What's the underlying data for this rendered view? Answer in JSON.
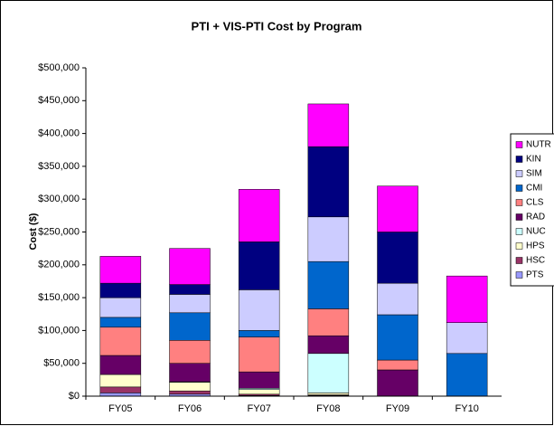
{
  "chart_data": {
    "type": "stacked_bar",
    "title": "PTI + VIS-PTI Cost by Program",
    "y_label": "Cost ($)",
    "categories": [
      "FY05",
      "FY06",
      "FY07",
      "FY08",
      "FY09",
      "FY10"
    ],
    "series": [
      {
        "name": "PTS",
        "color": "#9999FF",
        "values": [
          5000,
          3000,
          1000,
          1000,
          0,
          0
        ]
      },
      {
        "name": "HSC",
        "color": "#993366",
        "values": [
          9000,
          5000,
          2000,
          1000,
          0,
          0
        ]
      },
      {
        "name": "HPS",
        "color": "#FFFFCC",
        "values": [
          19000,
          13000,
          7000,
          3000,
          0,
          0
        ]
      },
      {
        "name": "NUC",
        "color": "#CCFFFF",
        "values": [
          0,
          1000,
          2000,
          60000,
          0,
          0
        ]
      },
      {
        "name": "RAD",
        "color": "#660066",
        "values": [
          29000,
          28000,
          25000,
          27000,
          40000,
          0
        ]
      },
      {
        "name": "CLS",
        "color": "#FF8080",
        "values": [
          43000,
          35000,
          53000,
          41000,
          15000,
          0
        ]
      },
      {
        "name": "CMI",
        "color": "#0066CC",
        "values": [
          15000,
          42000,
          10000,
          72000,
          69000,
          65000
        ]
      },
      {
        "name": "SIM",
        "color": "#CCCCFF",
        "values": [
          30000,
          28000,
          62000,
          68000,
          48000,
          47000
        ]
      },
      {
        "name": "KIN",
        "color": "#000080",
        "values": [
          22000,
          15000,
          73000,
          107000,
          78000,
          0
        ]
      },
      {
        "name": "NUTR",
        "color": "#FF00FF",
        "values": [
          41000,
          55000,
          80000,
          65000,
          70000,
          71000
        ]
      }
    ],
    "ylim": [
      0,
      500000
    ],
    "yticks": [
      {
        "value": 0,
        "label": "$0"
      },
      {
        "value": 50000,
        "label": "$50,000"
      },
      {
        "value": 100000,
        "label": "$100,000"
      },
      {
        "value": 150000,
        "label": "$150,000"
      },
      {
        "value": 200000,
        "label": "$200,000"
      },
      {
        "value": 250000,
        "label": "$250,000"
      },
      {
        "value": 300000,
        "label": "$300,000"
      },
      {
        "value": 350000,
        "label": "$350,000"
      },
      {
        "value": 400000,
        "label": "$400,000"
      },
      {
        "value": 450000,
        "label": "$450,000"
      },
      {
        "value": 500000,
        "label": "$500,000"
      }
    ],
    "grid": false,
    "legend": "right"
  }
}
